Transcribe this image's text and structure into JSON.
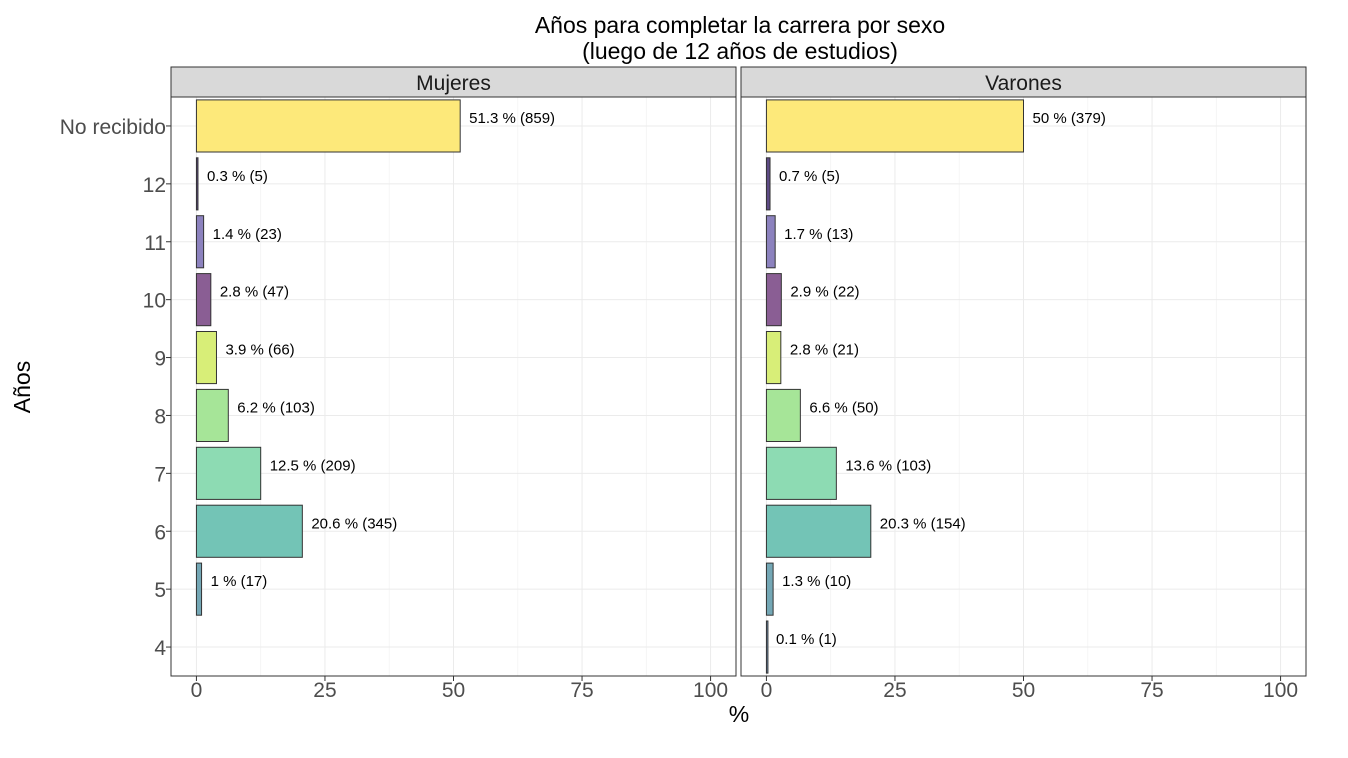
{
  "chart_data": {
    "type": "bar",
    "orientation": "horizontal",
    "title": "Años para completar la carrera por sexo",
    "subtitle": "(luego de 12 años de estudios)",
    "xlabel": "%",
    "ylabel": "Años",
    "xlim": [
      0,
      100
    ],
    "xticks": [
      0,
      25,
      50,
      75,
      100
    ],
    "categories": [
      "No recibido",
      "12",
      "11",
      "10",
      "9",
      "8",
      "7",
      "6",
      "5",
      "4"
    ],
    "category_colors": {
      "No recibido": "#FDE97A",
      "12": "#5E4B85",
      "11": "#8C82BE",
      "10": "#8A5E94",
      "9": "#D8EE78",
      "8": "#A6E598",
      "7": "#8DDBB3",
      "6": "#73C4B6",
      "5": "#74A7B5",
      "4": "#7A9CC0"
    },
    "grid": true,
    "legend": "none",
    "panels": [
      {
        "name": "Mujeres",
        "values": [
          51.3,
          0.3,
          1.4,
          2.8,
          3.9,
          6.2,
          12.5,
          20.6,
          1.0,
          null
        ],
        "labels": [
          "51.3 % (859)",
          "0.3 % (5)",
          "1.4 % (23)",
          "2.8 % (47)",
          "3.9 % (66)",
          "6.2 % (103)",
          "12.5 % (209)",
          "20.6 % (345)",
          "1 % (17)",
          ""
        ]
      },
      {
        "name": "Varones",
        "values": [
          50,
          0.7,
          1.7,
          2.9,
          2.8,
          6.6,
          13.6,
          20.3,
          1.3,
          0.1
        ],
        "labels": [
          "50 % (379)",
          "0.7 % (5)",
          "1.7 % (13)",
          "2.9 % (22)",
          "2.8 % (21)",
          "6.6 % (50)",
          "13.6 % (103)",
          "20.3 % (154)",
          "1.3 % (10)",
          "0.1 % (1)"
        ]
      }
    ]
  }
}
